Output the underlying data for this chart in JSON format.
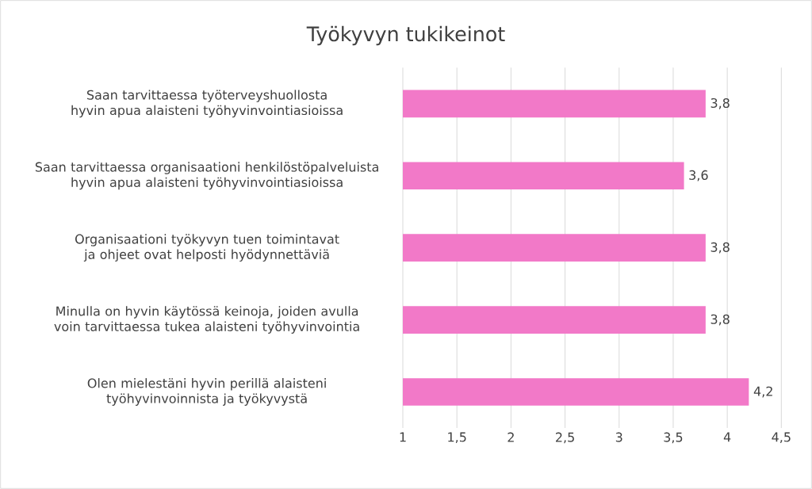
{
  "chart_data": {
    "type": "bar",
    "orientation": "horizontal",
    "title": "Työkyvyn tukikeinot",
    "categories": [
      "Saan tarvittaessa työterveyshuollosta hyvin apua alaisteni työhyvinvointiasioissa",
      "Saan tarvittaessa organisaationi henkilöstöpalveluista hyvin apua alaisteni työhyvinvointiasioissa",
      "Organisaationi työkyvyn tuen toimintavat ja ohjeet ovat helposti hyödynnettäviä",
      "Minulla on hyvin käytössä keinoja, joiden avulla voin tarvittaessa tukea alaisteni työhyvinvointia",
      "Olen mielestäni hyvin perillä alaisteni työhyvinvoinnista ja työkyvystä"
    ],
    "values": [
      3.8,
      3.6,
      3.8,
      3.8,
      4.2
    ],
    "value_labels": [
      "3,8",
      "3,6",
      "3,8",
      "3,8",
      "4,2"
    ],
    "color": "#f279c8",
    "xlim": [
      1,
      4.5
    ],
    "xticks": [
      1,
      {
        "value": 1.5,
        "label": "1,5"
      },
      2,
      {
        "value": 2.5,
        "label": "2,5"
      },
      3,
      {
        "value": 3.5,
        "label": "3,5"
      },
      4,
      {
        "value": 4.5,
        "label": "4,5"
      }
    ],
    "grid": "x"
  }
}
